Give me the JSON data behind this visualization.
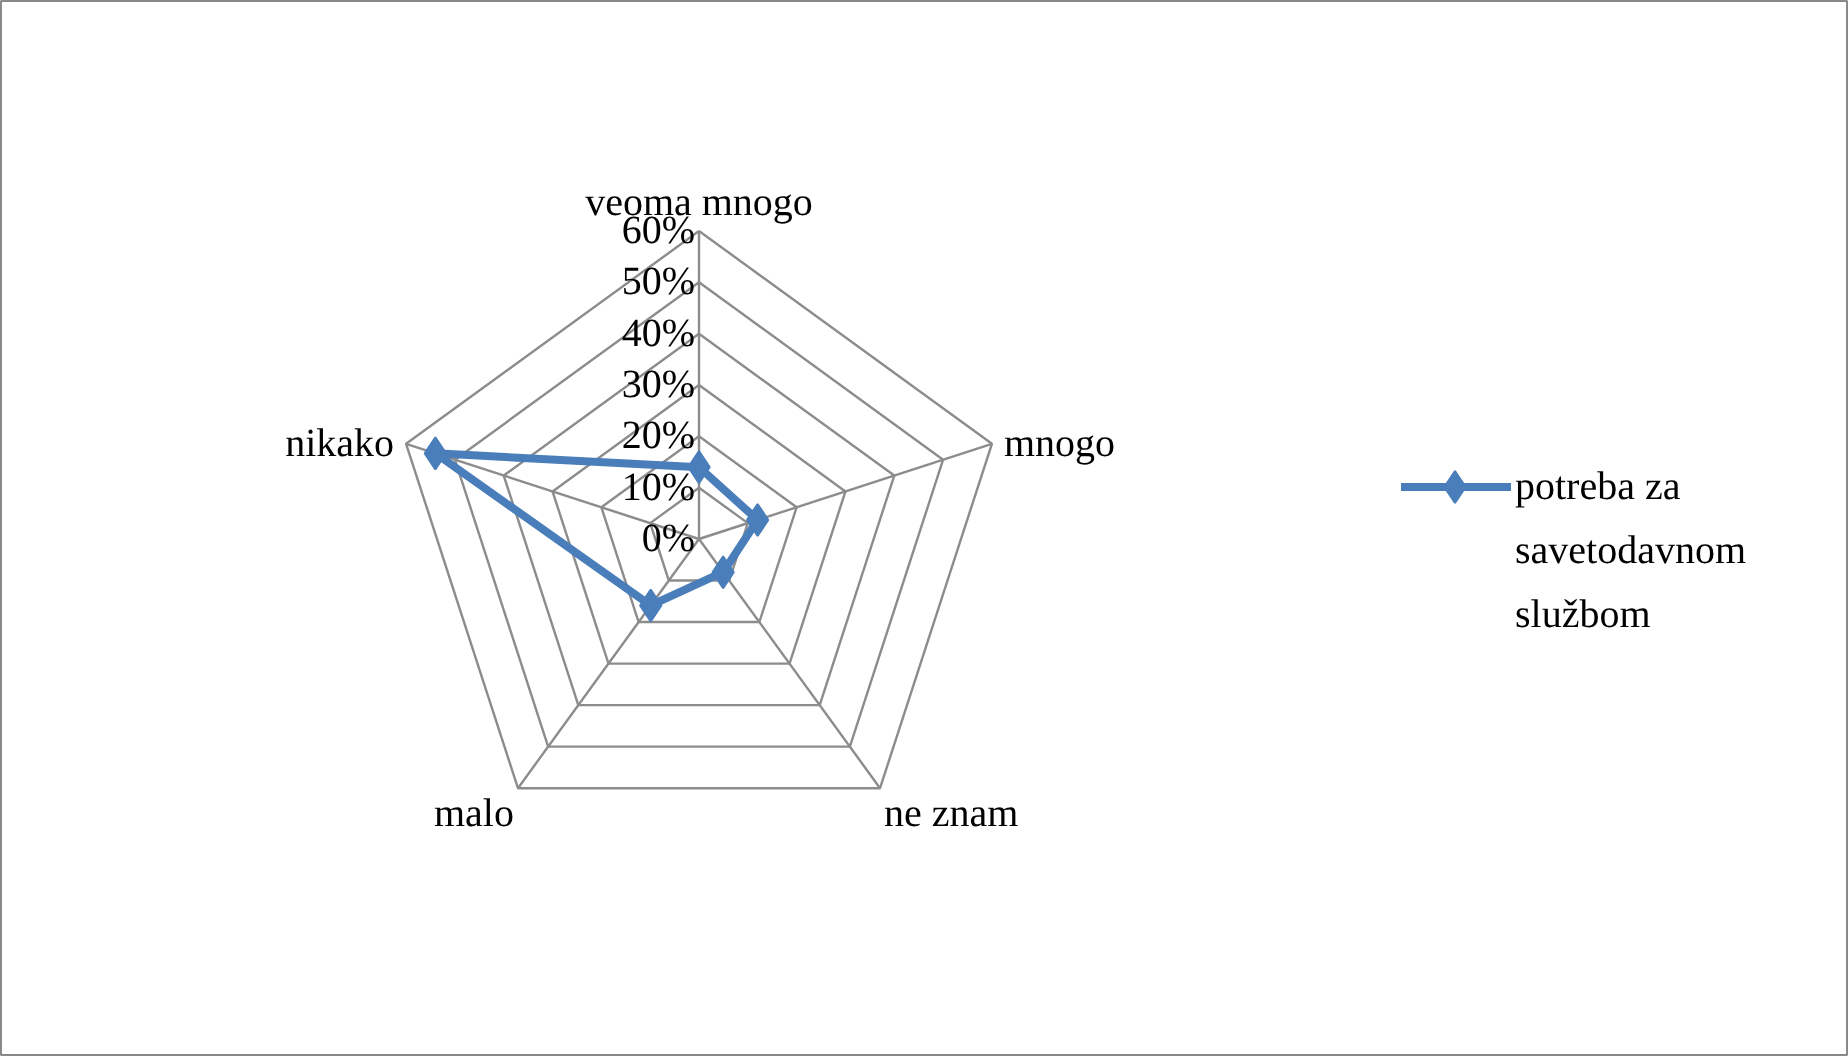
{
  "chart_data": {
    "type": "radar",
    "categories": [
      "veoma mnogo",
      "mnogo",
      "ne znam",
      "malo",
      "nikako"
    ],
    "series": [
      {
        "name": "potreba za savetodavnom službom",
        "color": "#4a7ebb",
        "values": [
          14,
          12,
          8,
          16,
          54
        ]
      }
    ],
    "ylim": [
      0,
      60
    ],
    "yticks": [
      {
        "value": 0,
        "label": "0%"
      },
      {
        "value": 10,
        "label": "10%"
      },
      {
        "value": 20,
        "label": "20%"
      },
      {
        "value": 30,
        "label": "30%"
      },
      {
        "value": 40,
        "label": "40%"
      },
      {
        "value": 50,
        "label": "50%"
      },
      {
        "value": 60,
        "label": "60%"
      }
    ],
    "grid": true,
    "legend": "right",
    "marker": "diamond",
    "line_style": "solid"
  }
}
